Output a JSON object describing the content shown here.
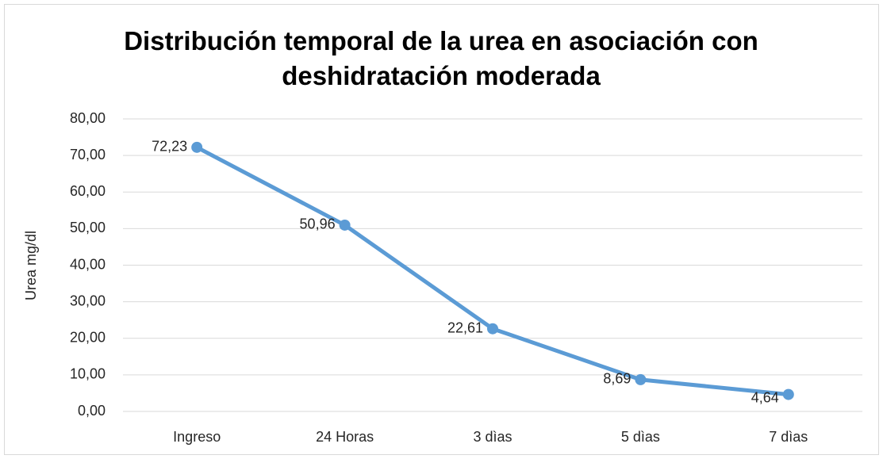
{
  "chart_data": {
    "type": "line",
    "title": "Distribución temporal de la urea en asociación con deshidratación moderada",
    "y_label": "Urea mg/dl",
    "categories": [
      "Ingreso",
      "24 Horas",
      "3 dìas",
      "5 dìas",
      "7 dìas"
    ],
    "series": [
      {
        "name": "Urea",
        "color": "#5b9bd5",
        "values": [
          72.23,
          50.96,
          22.61,
          8.69,
          4.64
        ],
        "value_labels": [
          "72,23",
          "50,96",
          "22,61",
          "8,69",
          "4,64"
        ]
      }
    ],
    "ylim": [
      0,
      80
    ],
    "yticks": [
      {
        "value": 0,
        "label": "0,00"
      },
      {
        "value": 10,
        "label": "10,00"
      },
      {
        "value": 20,
        "label": "20,00"
      },
      {
        "value": 30,
        "label": "30,00"
      },
      {
        "value": 40,
        "label": "40,00"
      },
      {
        "value": 50,
        "label": "50,00"
      },
      {
        "value": 60,
        "label": "60,00"
      },
      {
        "value": 70,
        "label": "70,00"
      },
      {
        "value": 80,
        "label": "80,00"
      }
    ],
    "grid": true
  }
}
